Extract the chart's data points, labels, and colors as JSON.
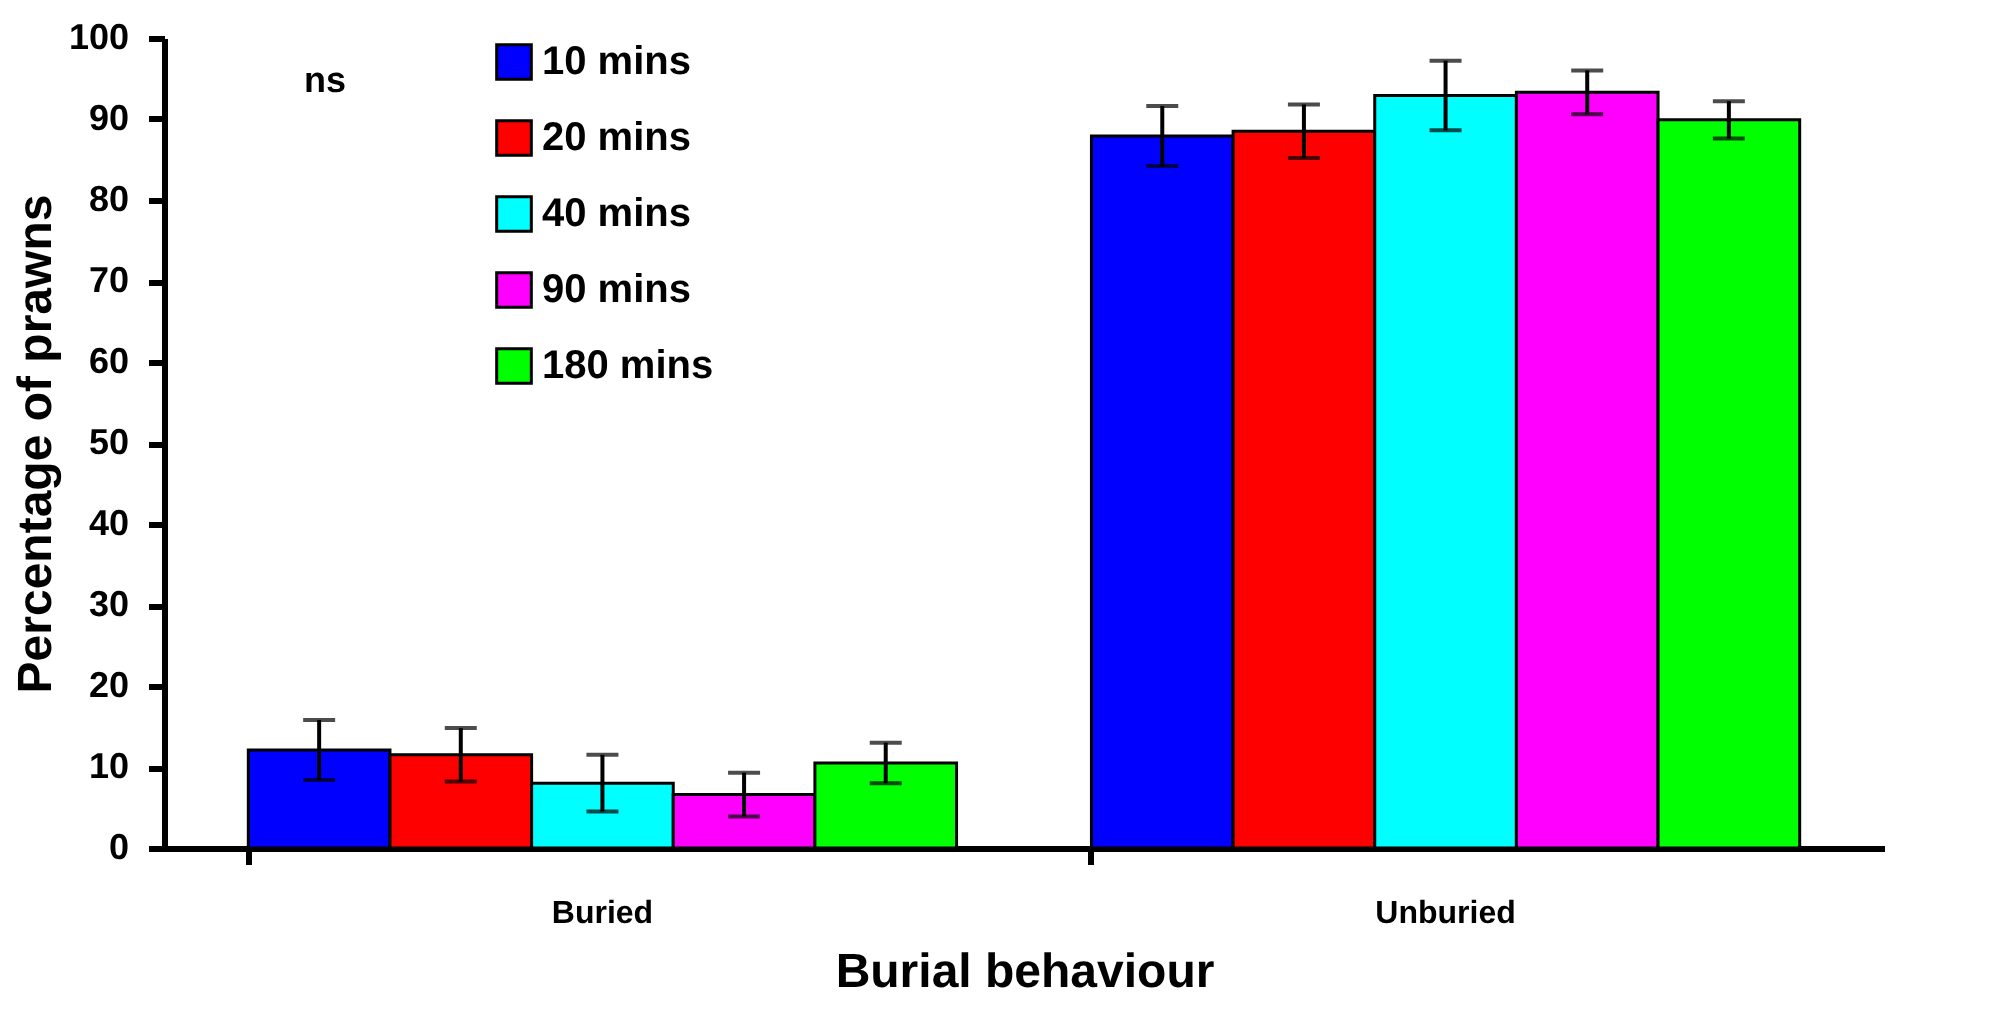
{
  "chart_data": {
    "type": "bar",
    "xlabel": "Burial behaviour",
    "ylabel": "Percentage of prawns",
    "categories": [
      "Buried",
      "Unburied"
    ],
    "series": [
      {
        "name": "10 mins",
        "color": "#0000ff",
        "values": [
          12.1,
          87.9
        ],
        "errors": [
          3.7,
          3.7
        ]
      },
      {
        "name": "20 mins",
        "color": "#ff0000",
        "values": [
          11.5,
          88.5
        ],
        "errors": [
          3.3,
          3.3
        ]
      },
      {
        "name": "40 mins",
        "color": "#00ffff",
        "values": [
          8.0,
          92.9
        ],
        "errors": [
          3.5,
          4.3
        ]
      },
      {
        "name": "90 mins",
        "color": "#ff00ff",
        "values": [
          6.6,
          93.3
        ],
        "errors": [
          2.7,
          2.7
        ]
      },
      {
        "name": "180 mins",
        "color": "#00ff00",
        "values": [
          10.5,
          89.9
        ],
        "errors": [
          2.5,
          2.3
        ]
      }
    ],
    "ylim": [
      0,
      100
    ],
    "yticks": [
      0,
      10,
      20,
      30,
      40,
      50,
      60,
      70,
      80,
      90,
      100
    ],
    "annotations": [
      "ns"
    ],
    "legend": "top left",
    "grid": false
  }
}
